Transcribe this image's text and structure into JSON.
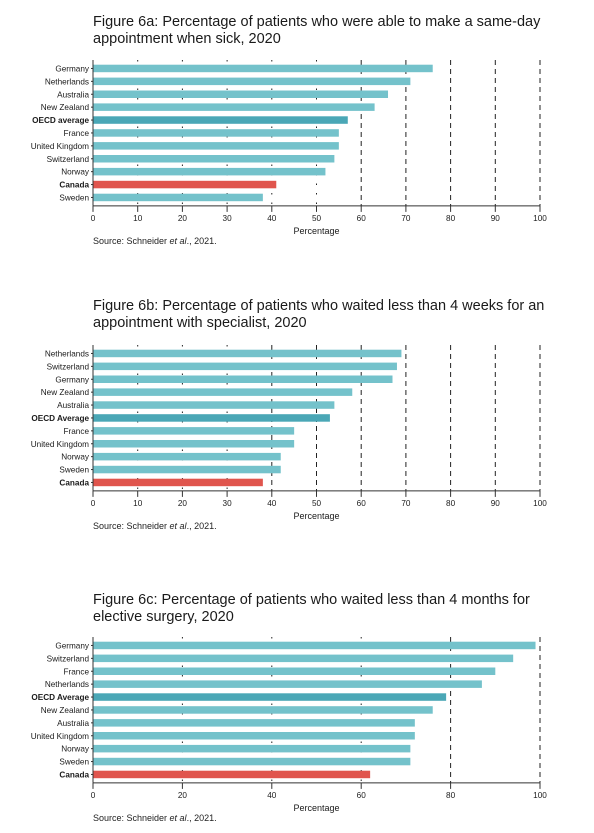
{
  "colors": {
    "bar": "#74c2cb",
    "oecd": "#4aa7b6",
    "canada": "#e0554d",
    "grid": "#222222"
  },
  "chart_data": [
    {
      "type": "bar",
      "orientation": "horizontal",
      "title_line1": "Figure 6a: Percentage of patients who were able to make a same-day",
      "title_line2": "appointment when sick, 2020",
      "xlabel": "Percentage",
      "xlim": [
        0,
        100
      ],
      "xticks": [
        0,
        10,
        20,
        30,
        40,
        50,
        60,
        70,
        80,
        90,
        100
      ],
      "grid_dashed_from": 60,
      "categories": [
        "Germany",
        "Netherlands",
        "Australia",
        "New Zealand",
        "OECD average",
        "France",
        "United Kingdom",
        "Switzerland",
        "Norway",
        "Canada",
        "Sweden"
      ],
      "values": [
        76,
        71,
        66,
        63,
        57,
        55,
        55,
        54,
        52,
        41,
        38
      ],
      "highlight": {
        "OECD average": "oecd",
        "Canada": "canada"
      },
      "bold_labels": [
        "OECD average",
        "Canada"
      ],
      "source_prefix": "Source: Schneider ",
      "source_italic": "et al",
      "source_suffix": "., 2021."
    },
    {
      "type": "bar",
      "orientation": "horizontal",
      "title_line1": "Figure 6b: Percentage of patients who waited less than 4 weeks for an",
      "title_line2": "appointment with specialist, 2020",
      "xlabel": "Percentage",
      "xlim": [
        0,
        100
      ],
      "xticks": [
        0,
        10,
        20,
        30,
        40,
        50,
        60,
        70,
        80,
        90,
        100
      ],
      "grid_dashed_from": 40,
      "categories": [
        "Netherlands",
        "Switzerland",
        "Germany",
        "New Zealand",
        "Australia",
        "OECD Average",
        "France",
        "United Kingdom",
        "Norway",
        "Sweden",
        "Canada"
      ],
      "values": [
        69,
        68,
        67,
        58,
        54,
        53,
        45,
        45,
        42,
        42,
        38
      ],
      "highlight": {
        "OECD Average": "oecd",
        "Canada": "canada"
      },
      "bold_labels": [
        "OECD Average",
        "Canada"
      ],
      "source_prefix": "Source: Schneider ",
      "source_italic": "et al",
      "source_suffix": "., 2021."
    },
    {
      "type": "bar",
      "orientation": "horizontal",
      "title_line1": "Figure 6c: Percentage of patients who waited less than 4 months for",
      "title_line2": "elective surgery, 2020",
      "xlabel": "Percentage",
      "xlim": [
        0,
        100
      ],
      "xticks": [
        0,
        20,
        40,
        60,
        80,
        100
      ],
      "grid_dashed_from": 80,
      "categories": [
        "Germany",
        "Switzerland",
        "France",
        "Netherlands",
        "OECD Average",
        "New Zealand",
        "Australia",
        "United Kingdom",
        "Norway",
        "Sweden",
        "Canada"
      ],
      "values": [
        99,
        94,
        90,
        87,
        79,
        76,
        72,
        72,
        71,
        71,
        62
      ],
      "highlight": {
        "OECD Average": "oecd",
        "Canada": "canada"
      },
      "bold_labels": [
        "OECD Average",
        "Canada"
      ],
      "source_prefix": "Source: Schneider ",
      "source_italic": "et al",
      "source_suffix": "., 2021."
    }
  ]
}
